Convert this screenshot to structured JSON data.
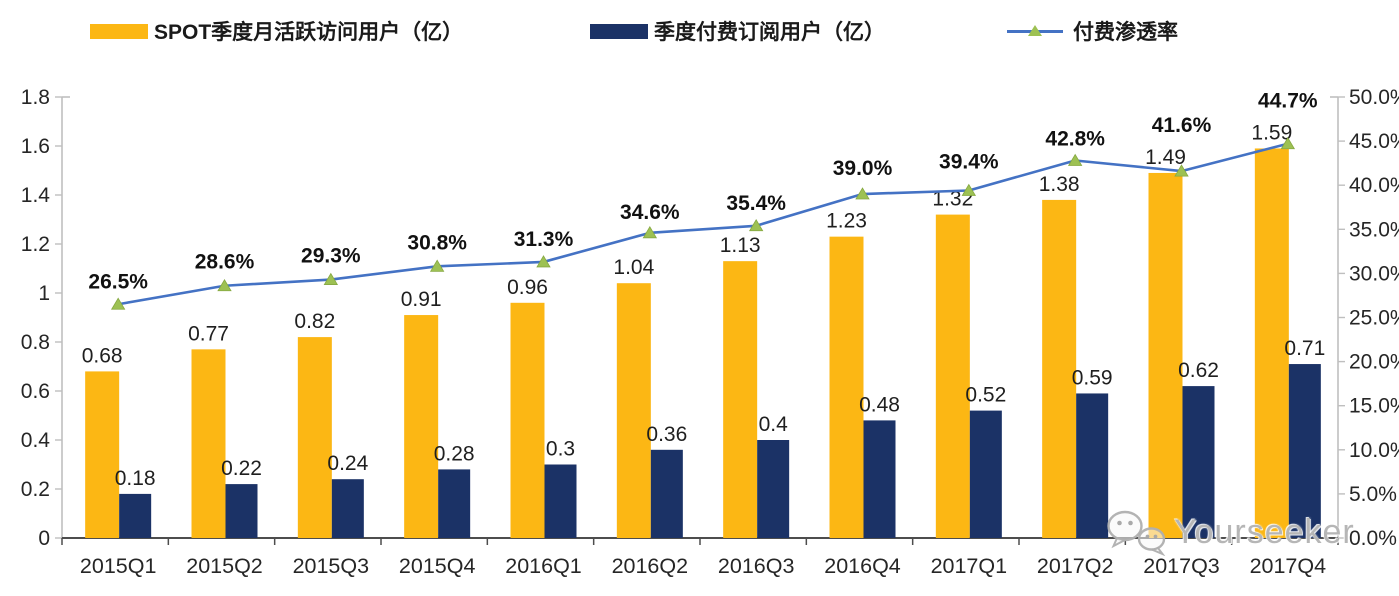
{
  "legend": {
    "items": [
      {
        "label": "SPOT季度月活跃访问用户（亿）",
        "swatch_color": "#FCB714",
        "kind": "bar-swatch"
      },
      {
        "label": "季度付费订阅用户（亿）",
        "swatch_color": "#1B3266",
        "kind": "bar-swatch"
      },
      {
        "label": "付费渗透率",
        "line_color": "#4472C4",
        "marker_color": "#9DC153",
        "kind": "line-marker"
      }
    ]
  },
  "watermark": {
    "text": "Yourseeker",
    "icon": "wechat-icon"
  },
  "chart_data": {
    "type": "combo-bar-line",
    "title": "",
    "grid": false,
    "legend_position": "top",
    "categories": [
      "2015Q1",
      "2015Q2",
      "2015Q3",
      "2015Q4",
      "2016Q1",
      "2016Q2",
      "2016Q3",
      "2016Q4",
      "2017Q1",
      "2017Q2",
      "2017Q3",
      "2017Q4"
    ],
    "series": [
      {
        "name": "SPOT季度月活跃访问用户（亿）",
        "type": "bar",
        "axis": "left",
        "color": "#FCB714",
        "values": [
          0.68,
          0.77,
          0.82,
          0.91,
          0.96,
          1.04,
          1.13,
          1.23,
          1.32,
          1.38,
          1.49,
          1.59
        ],
        "labels": [
          "0.68",
          "0.77",
          "0.82",
          "0.91",
          "0.96",
          "1.04",
          "1.13",
          "1.23",
          "1.32",
          "1.38",
          "1.49",
          "1.59"
        ]
      },
      {
        "name": "季度付费订阅用户（亿）",
        "type": "bar",
        "axis": "left",
        "color": "#1B3266",
        "values": [
          0.18,
          0.22,
          0.24,
          0.28,
          0.3,
          0.36,
          0.4,
          0.48,
          0.52,
          0.59,
          0.62,
          0.71
        ],
        "labels": [
          "0.18",
          "0.22",
          "0.24",
          "0.28",
          "0.3",
          "0.36",
          "0.4",
          "0.48",
          "0.52",
          "0.59",
          "0.62",
          "0.71"
        ]
      },
      {
        "name": "付费渗透率",
        "type": "line",
        "axis": "right",
        "color": "#4472C4",
        "marker": "triangle",
        "marker_color": "#9DC153",
        "values": [
          26.5,
          28.6,
          29.3,
          30.8,
          31.3,
          34.6,
          35.4,
          39.0,
          39.4,
          42.8,
          41.6,
          44.7
        ],
        "labels": [
          "26.5%",
          "28.6%",
          "29.3%",
          "30.8%",
          "31.3%",
          "34.6%",
          "35.4%",
          "39.0%",
          "39.4%",
          "42.8%",
          "41.6%",
          "44.7%"
        ]
      }
    ],
    "left_axis": {
      "min": 0,
      "max": 1.8,
      "tick_labels": [
        "0",
        "0.2",
        "0.4",
        "0.6",
        "0.8",
        "1",
        "1.2",
        "1.4",
        "1.6",
        "1.8"
      ]
    },
    "right_axis": {
      "min": 0,
      "max": 50,
      "tick_labels": [
        "0.0%",
        "5.0%",
        "10.0%",
        "15.0%",
        "20.0%",
        "25.0%",
        "30.0%",
        "35.0%",
        "40.0%",
        "45.0%",
        "50.0%"
      ]
    }
  }
}
